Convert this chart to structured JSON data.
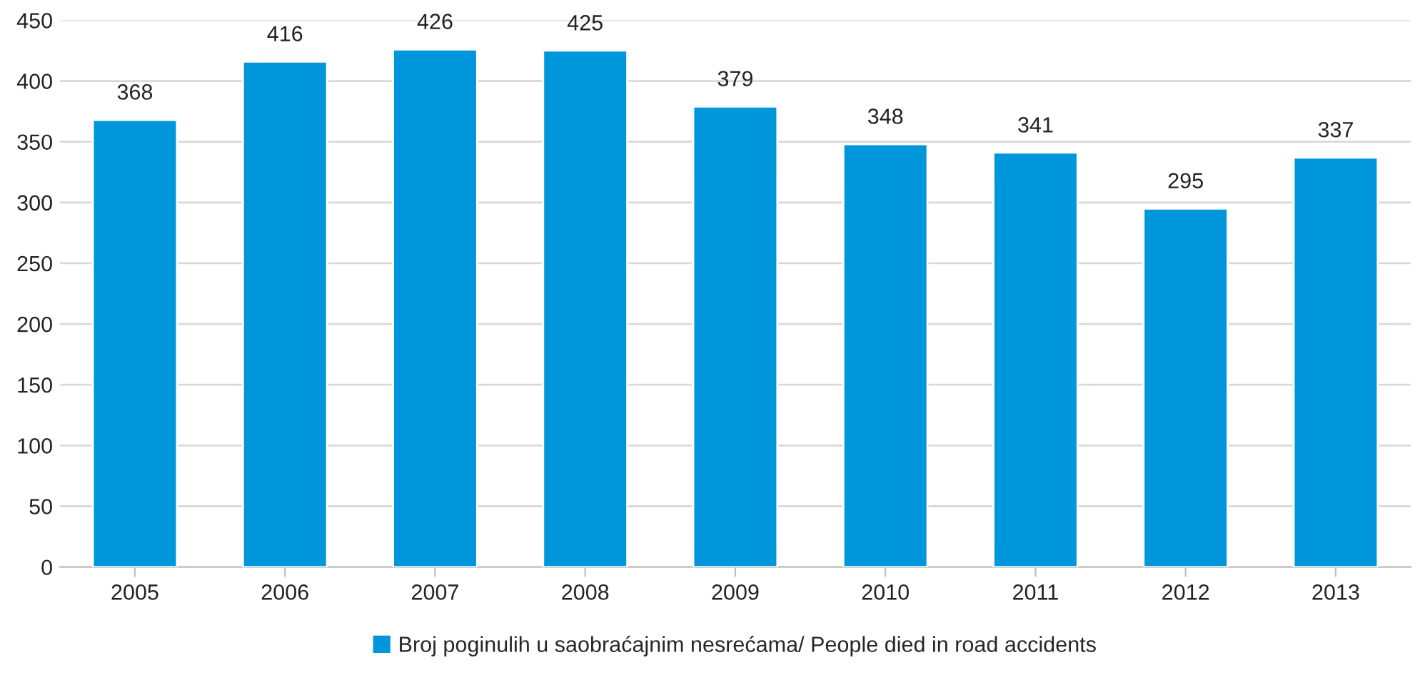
{
  "chart_data": {
    "type": "bar",
    "categories": [
      "2005",
      "2006",
      "2007",
      "2008",
      "2009",
      "2010",
      "2011",
      "2012",
      "2013"
    ],
    "series": [
      {
        "name": "Broj poginulih u saobraćajnim nesrećama/ People died in road accidents",
        "color": "#0096db",
        "values": [
          368,
          416,
          426,
          425,
          379,
          348,
          341,
          295,
          337
        ]
      }
    ],
    "ylim": [
      0,
      450
    ],
    "yticks": [
      0,
      50,
      100,
      150,
      200,
      250,
      300,
      350,
      400,
      450
    ],
    "grid": "y",
    "legend": "bottom",
    "data_labels": true
  }
}
